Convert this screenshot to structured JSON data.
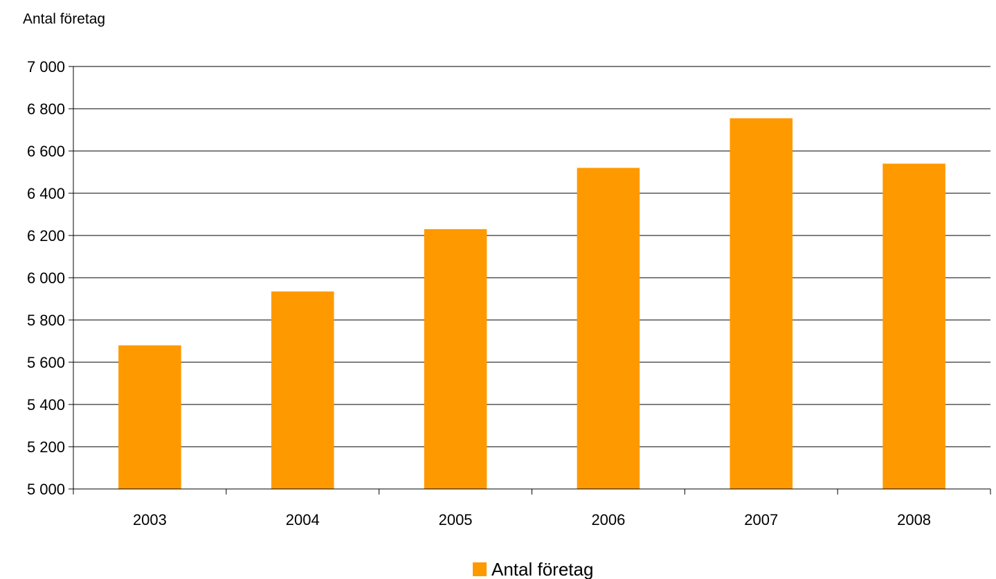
{
  "chart_data": {
    "type": "bar",
    "ylabel": "Antal företag",
    "xlabel": "",
    "categories": [
      "2003",
      "2004",
      "2005",
      "2006",
      "2007",
      "2008"
    ],
    "series": [
      {
        "name": "Antal företag",
        "values": [
          5680,
          5935,
          6230,
          6520,
          6755,
          6540
        ],
        "color": "#ff9900"
      }
    ],
    "ylim": [
      5000,
      7000
    ],
    "yticks": [
      5000,
      5200,
      5400,
      5600,
      5800,
      6000,
      6200,
      6400,
      6600,
      6800,
      7000
    ],
    "ytick_labels": [
      "5 000",
      "5 200",
      "5 400",
      "5 600",
      "5 800",
      "6 000",
      "6 200",
      "6 400",
      "6 600",
      "6 800",
      "7 000"
    ],
    "grid": true,
    "legend_position": "bottom-center"
  }
}
